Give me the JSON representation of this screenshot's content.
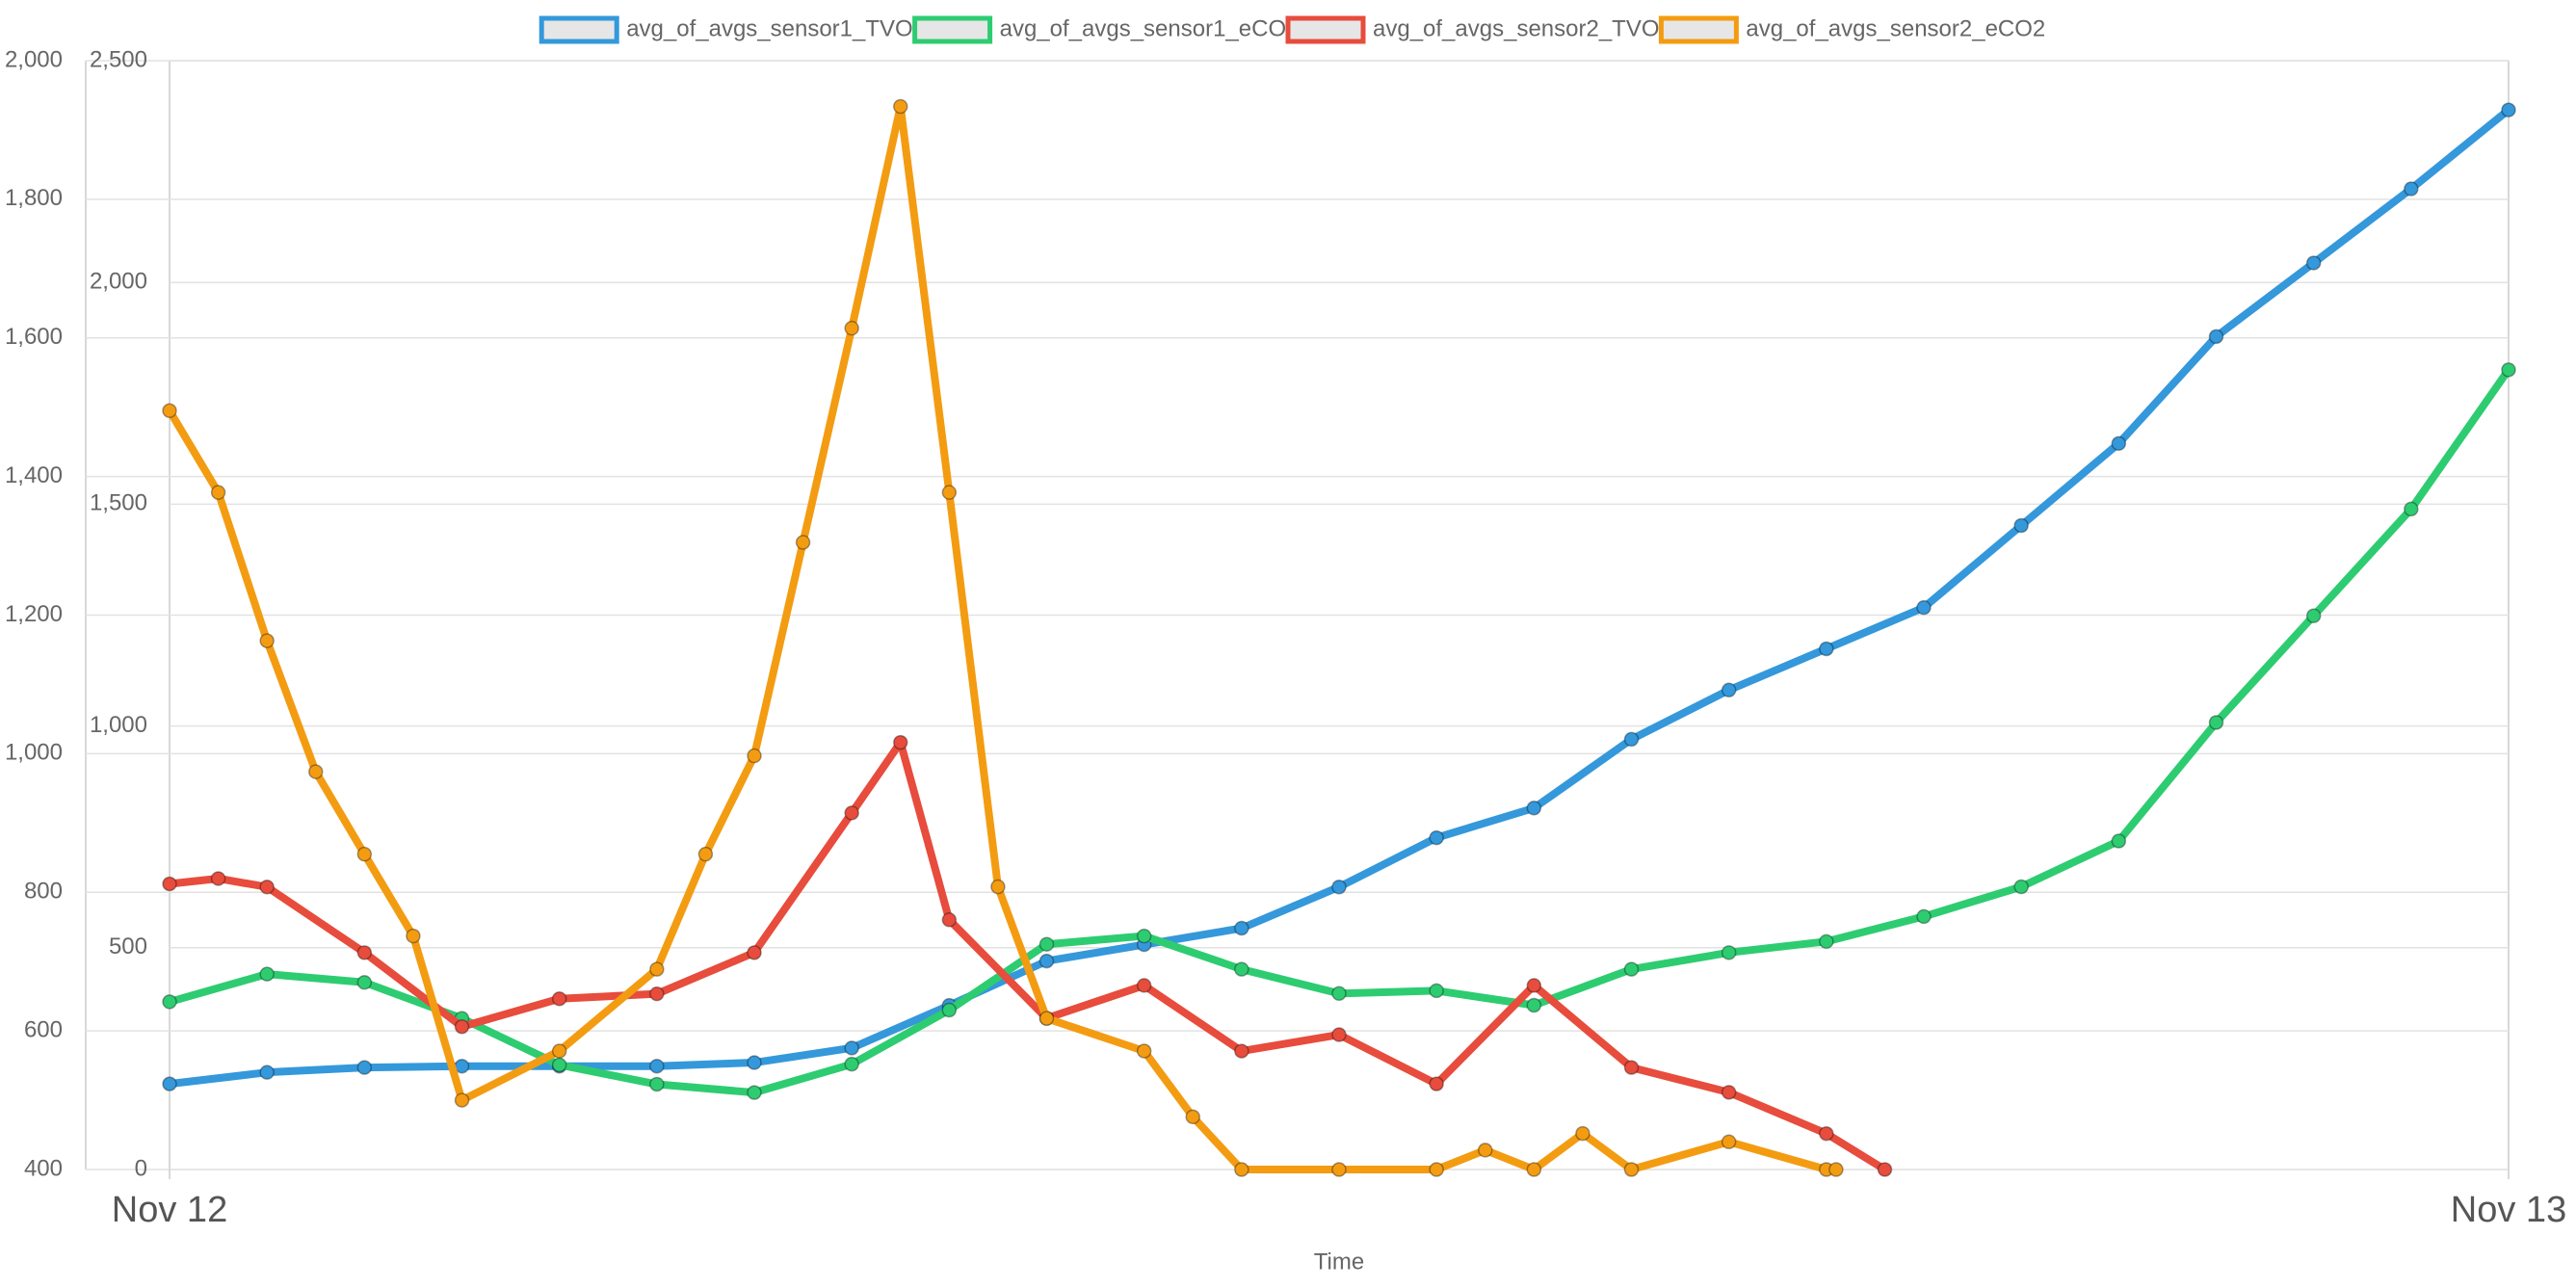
{
  "chart_data": {
    "type": "line",
    "x_label": "Time",
    "xlim": [
      0,
      24
    ],
    "xticks": [
      {
        "value": 0,
        "label": "Nov 12"
      },
      {
        "value": 24,
        "label": "Nov 13"
      }
    ],
    "ylim": [
      400,
      2000
    ],
    "yticks": [
      400,
      600,
      800,
      {
        "value": 1000,
        "label": "1,000"
      },
      {
        "value": 1200,
        "label": "1,200"
      },
      {
        "value": 1400,
        "label": "1,400"
      },
      {
        "value": 1600,
        "label": "1,600"
      },
      {
        "value": 1800,
        "label": "1,800"
      },
      {
        "value": 2000,
        "label": "2,000"
      }
    ],
    "y2lim": [
      0,
      2500
    ],
    "y2ticks": [
      0,
      500,
      {
        "value": 1000,
        "label": "1,000"
      },
      {
        "value": 1500,
        "label": "1,500"
      },
      {
        "value": 2000,
        "label": "2,000"
      },
      {
        "value": 2500,
        "label": "2,500"
      }
    ],
    "grid": true,
    "legend": "top",
    "series": [
      {
        "name": "avg_of_avgs_sensor1_TVOC",
        "color": "#3498db",
        "axis": "y2",
        "x": [
          0,
          1,
          2,
          3,
          4,
          5,
          6,
          7,
          8,
          9,
          10,
          11,
          12,
          13,
          14,
          15,
          16,
          17,
          18,
          19,
          20,
          21,
          22,
          23,
          24
        ],
        "values": [
          193,
          219,
          230,
          233,
          233,
          233,
          241,
          274,
          370,
          470,
          507,
          544,
          637,
          748,
          815,
          970,
          1081,
          1174,
          1267,
          1452,
          1637,
          1878,
          2044,
          2211,
          2389
        ]
      },
      {
        "name": "avg_of_avgs_sensor1_eCO2",
        "color": "#2ecc71",
        "axis": "y",
        "x": [
          0,
          1,
          2,
          3,
          4,
          5,
          6,
          7,
          8,
          9,
          10,
          11,
          12,
          13,
          14,
          15,
          16,
          17,
          18,
          19,
          20,
          21,
          22,
          23,
          24
        ],
        "values": [
          642,
          682,
          670,
          618,
          551,
          523,
          511,
          552,
          630,
          725,
          737,
          689,
          654,
          658,
          637,
          689,
          713,
          729,
          765,
          808,
          874,
          1045,
          1199,
          1353,
          1554
        ]
      },
      {
        "name": "avg_of_avgs_sensor2_TVOC",
        "color": "#e74c3c",
        "axis": "y2",
        "x": [
          0,
          0.5,
          1,
          2,
          3,
          4,
          5,
          6,
          7,
          7.5,
          8,
          9,
          10,
          11,
          12,
          13,
          14,
          15,
          16,
          17,
          17.6
        ],
        "values": [
          644,
          656,
          637,
          489,
          322,
          385,
          396,
          489,
          804,
          963,
          563,
          341,
          415,
          267,
          304,
          193,
          415,
          230,
          174,
          81,
          0
        ]
      },
      {
        "name": "avg_of_avgs_sensor2_eCO2",
        "color": "#f39c12",
        "axis": "y",
        "x": [
          0,
          0.5,
          1,
          1.5,
          2,
          2.5,
          3,
          4,
          5,
          5.5,
          6,
          6.5,
          7,
          7.5,
          8,
          8.5,
          9,
          10,
          10.5,
          11,
          12,
          13,
          13.5,
          14,
          14.5,
          15,
          16,
          17,
          17.1
        ],
        "values": [
          1495,
          1377,
          1163,
          974,
          855,
          737,
          500,
          571,
          689,
          855,
          997,
          1305,
          1614,
          1934,
          1377,
          808,
          618,
          571,
          476,
          400,
          400,
          400,
          428,
          400,
          452,
          400,
          440,
          400,
          400
        ]
      }
    ]
  }
}
